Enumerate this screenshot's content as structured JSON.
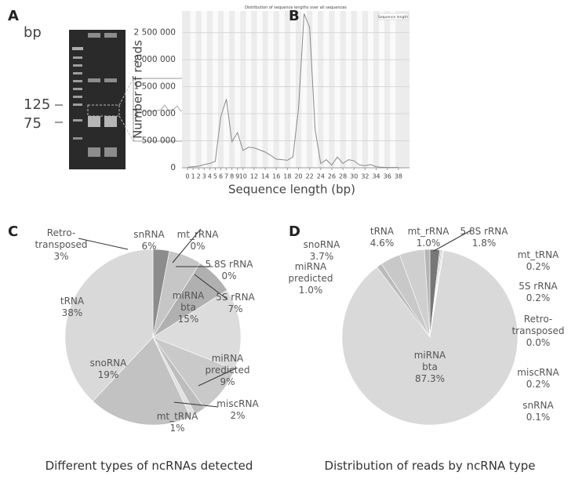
{
  "gel": {
    "panel": "A",
    "unit": "bp",
    "markers": [
      "125",
      "75"
    ]
  },
  "chart_data": [
    {
      "type": "line",
      "panel": "B",
      "title": "Distribution of sequence lengths over all sequences",
      "x_label": "Sequence length (bp)",
      "y_label": "Number of reads",
      "x": [
        0,
        1,
        2,
        3,
        4,
        5,
        6,
        7,
        8,
        9,
        10,
        11,
        12,
        13,
        14,
        15,
        16,
        17,
        18,
        19,
        20,
        21,
        22,
        23,
        24,
        25,
        26,
        27,
        28,
        29,
        30,
        31,
        32,
        33,
        34,
        35,
        36,
        37,
        38
      ],
      "series": [
        {
          "name": "Sequence length",
          "color": "#8a8a8a",
          "values": [
            10000,
            20000,
            30000,
            60000,
            80000,
            120000,
            950000,
            1270000,
            480000,
            650000,
            320000,
            380000,
            370000,
            330000,
            290000,
            230000,
            160000,
            150000,
            140000,
            200000,
            1100000,
            2850000,
            2600000,
            700000,
            80000,
            150000,
            50000,
            200000,
            80000,
            150000,
            130000,
            50000,
            40000,
            60000,
            20000,
            10000,
            5000,
            5000,
            5000
          ]
        }
      ],
      "xlim": [
        -1,
        40
      ],
      "xticks": [
        0,
        1,
        2,
        3,
        4,
        5,
        6,
        7,
        8,
        9,
        10,
        12,
        14,
        16,
        18,
        20,
        22,
        24,
        26,
        28,
        30,
        32,
        34,
        36,
        38
      ],
      "ylim": [
        0,
        2900000
      ],
      "yticks": [
        {
          "value": 0,
          "label": "0"
        },
        {
          "value": 500000,
          "label": "500 000"
        },
        {
          "value": 1000000,
          "label": "1 000 000"
        },
        {
          "value": 1500000,
          "label": "1 500 000"
        },
        {
          "value": 2000000,
          "label": "2 000 000"
        },
        {
          "value": 2500000,
          "label": "2 500 000"
        }
      ]
    },
    {
      "type": "pie",
      "panel": "C",
      "caption": "Different types of ncRNAs detected",
      "categories": [
        "Retro-transposed",
        "snRNA",
        "mt_rRNA",
        "5.8S rRNA",
        "5S rRNA",
        "miRNA bta",
        "miRNA predicted",
        "miscRNA",
        "mt_tRNA",
        "snoRNA",
        "tRNA"
      ],
      "values": [
        3,
        6,
        0,
        0,
        7,
        15,
        9,
        2,
        1,
        19,
        38
      ],
      "value_labels": [
        "3%",
        "6%",
        "0%",
        "0%",
        "7%",
        "15%",
        "9%",
        "2%",
        "1%",
        "19%",
        "38%"
      ],
      "colors": [
        "#8c8c8c",
        "#c6c6c6",
        "#bbbbbb",
        "#999999",
        "#b0b0b0",
        "#dcdcdc",
        "#c9c9c9",
        "#bdbdbd",
        "#e0e0e0",
        "#c2c2c2",
        "#d9d9d9"
      ]
    },
    {
      "type": "pie",
      "panel": "D",
      "caption": "Distribution of reads by ncRNA type",
      "categories": [
        "5.8S rRNA",
        "mt_tRNA",
        "5S rRNA",
        "Retro-transposed",
        "miscRNA",
        "snRNA",
        "miRNA bta",
        "miRNA predicted",
        "snoRNA",
        "tRNA",
        "mt_rRNA"
      ],
      "values": [
        1.8,
        0.2,
        0.2,
        0.0,
        0.2,
        0.1,
        87.3,
        1.0,
        3.7,
        4.6,
        1.0
      ],
      "value_labels": [
        "1.8%",
        "0.2%",
        "0.2%",
        "0.0%",
        "0.2%",
        "0.1%",
        "87.3%",
        "1.0%",
        "3.7%",
        "4.6%",
        "1.0%"
      ],
      "colors": [
        "#777777",
        "#aaaaaa",
        "#bbbbbb",
        "#999999",
        "#cccccc",
        "#aaaaaa",
        "#d9d9d9",
        "#bbbbbb",
        "#c8c8c8",
        "#cfcfcf",
        "#b5b5b5"
      ]
    }
  ]
}
